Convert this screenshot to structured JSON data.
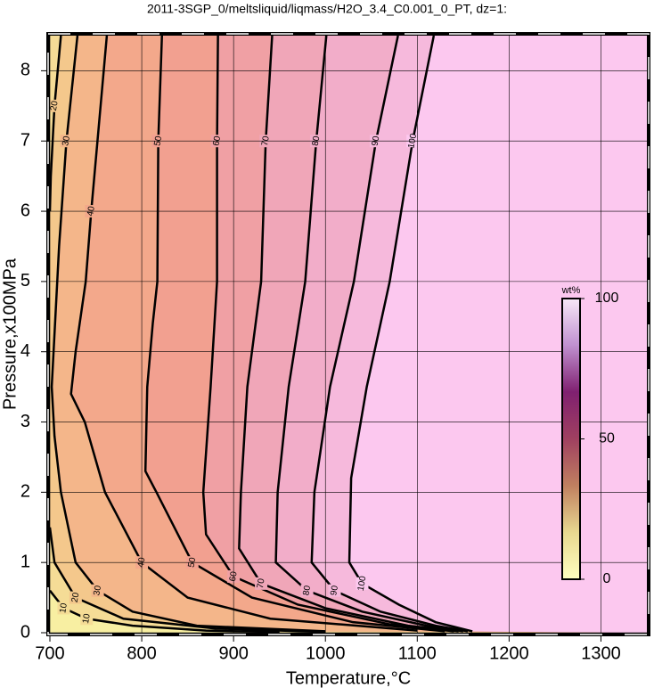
{
  "chart_data": {
    "type": "contour",
    "title": "2011-3SGP_0/meltsliquid/liqmass/H2O_3.4_C0.001_0_PT, dz=1:",
    "x_label": "Temperature,°C",
    "y_label": "Pressure,x100MPa",
    "xlim": [
      700,
      1350
    ],
    "ylim": [
      0,
      8.5
    ],
    "xticks": [
      700,
      800,
      900,
      1000,
      1100,
      1200,
      1300
    ],
    "yticks": [
      0,
      1,
      2,
      3,
      4,
      5,
      6,
      7,
      8
    ],
    "grid": true,
    "base_color": "#f8efa2",
    "contours": [
      {
        "level": 10,
        "color": "#f5dc96",
        "x": [
          700,
          715,
          740,
          790,
          870,
          950
        ],
        "y": [
          0.6,
          0.35,
          0.2,
          0.1,
          0.03,
          0.01
        ]
      },
      {
        "level": 20,
        "color": "#f4c88c",
        "x": [
          712,
          705,
          701,
          700,
          null,
          700,
          705,
          728,
          780,
          880,
          1000
        ],
        "y": [
          8.5,
          7.5,
          6.5,
          6,
          null,
          1.5,
          1,
          0.5,
          0.2,
          0.06,
          0.01
        ]
      },
      {
        "level": 30,
        "color": "#f4b68a",
        "x": [
          730,
          718,
          710,
          702,
          705,
          712,
          728,
          752,
          790,
          860,
          1000
        ],
        "y": [
          8.5,
          7,
          5.5,
          3.5,
          2.8,
          2,
          1,
          0.6,
          0.3,
          0.1,
          0.02
        ]
      },
      {
        "level": 40,
        "color": "#f3a88b",
        "x": [
          762,
          745,
          739,
          728,
          723,
          738,
          760,
          800,
          850,
          940,
          1100
        ],
        "y": [
          8.5,
          6,
          5,
          4,
          3.4,
          3,
          2,
          1,
          0.5,
          0.2,
          0.03
        ]
      },
      {
        "level": 50,
        "color": "#f2a090",
        "x": [
          822,
          818,
          817,
          812,
          806,
          804,
          816,
          855,
          920,
          1030,
          1130
        ],
        "y": [
          8.5,
          7,
          5,
          4.4,
          3.5,
          2.3,
          2,
          1,
          0.5,
          0.15,
          0.02
        ]
      },
      {
        "level": 60,
        "color": "#f0a0a4",
        "x": [
          883,
          882,
          882,
          875,
          867,
          870,
          900,
          970,
          1070,
          1140
        ],
        "y": [
          8.5,
          7,
          5,
          3.5,
          2,
          1.4,
          0.8,
          0.4,
          0.12,
          0.02
        ]
      },
      {
        "level": 70,
        "color": "#f0a6b8",
        "x": [
          942,
          935,
          930,
          915,
          908,
          906,
          930,
          1000,
          1090,
          1145
        ],
        "y": [
          8.5,
          7,
          5,
          3.5,
          2,
          1.2,
          0.7,
          0.35,
          0.1,
          0.02
        ]
      },
      {
        "level": 80,
        "color": "#f2adc9",
        "x": [
          1001,
          990,
          978,
          960,
          948,
          946,
          980,
          1040,
          1110,
          1150
        ],
        "y": [
          8.5,
          7,
          5,
          3.5,
          2,
          1,
          0.6,
          0.3,
          0.1,
          0.02
        ]
      },
      {
        "level": 90,
        "color": "#f6b9dc",
        "x": [
          1079,
          1055,
          1031,
          1005,
          988,
          985,
          1010,
          1060,
          1120,
          1155
        ],
        "y": [
          8.5,
          7,
          5,
          3.5,
          2,
          1,
          0.6,
          0.3,
          0.1,
          0.02
        ]
      },
      {
        "level": 100,
        "color": "#fcc8ef",
        "x": [
          1118,
          1095,
          1070,
          1045,
          1028,
          1026,
          1040,
          1080,
          1120,
          1160
        ],
        "y": [
          8.5,
          7,
          5,
          3.5,
          2.2,
          1,
          0.7,
          0.4,
          0.15,
          0.02
        ]
      }
    ],
    "colorbar": {
      "label": "wt%",
      "lim": [
        0,
        100
      ],
      "ticks": [
        0,
        50,
        100
      ],
      "colors": [
        "#ffffc0",
        "#e8d890",
        "#c08060",
        "#a04060",
        "#802070",
        "#c090d0",
        "#f8e8f8"
      ]
    }
  }
}
